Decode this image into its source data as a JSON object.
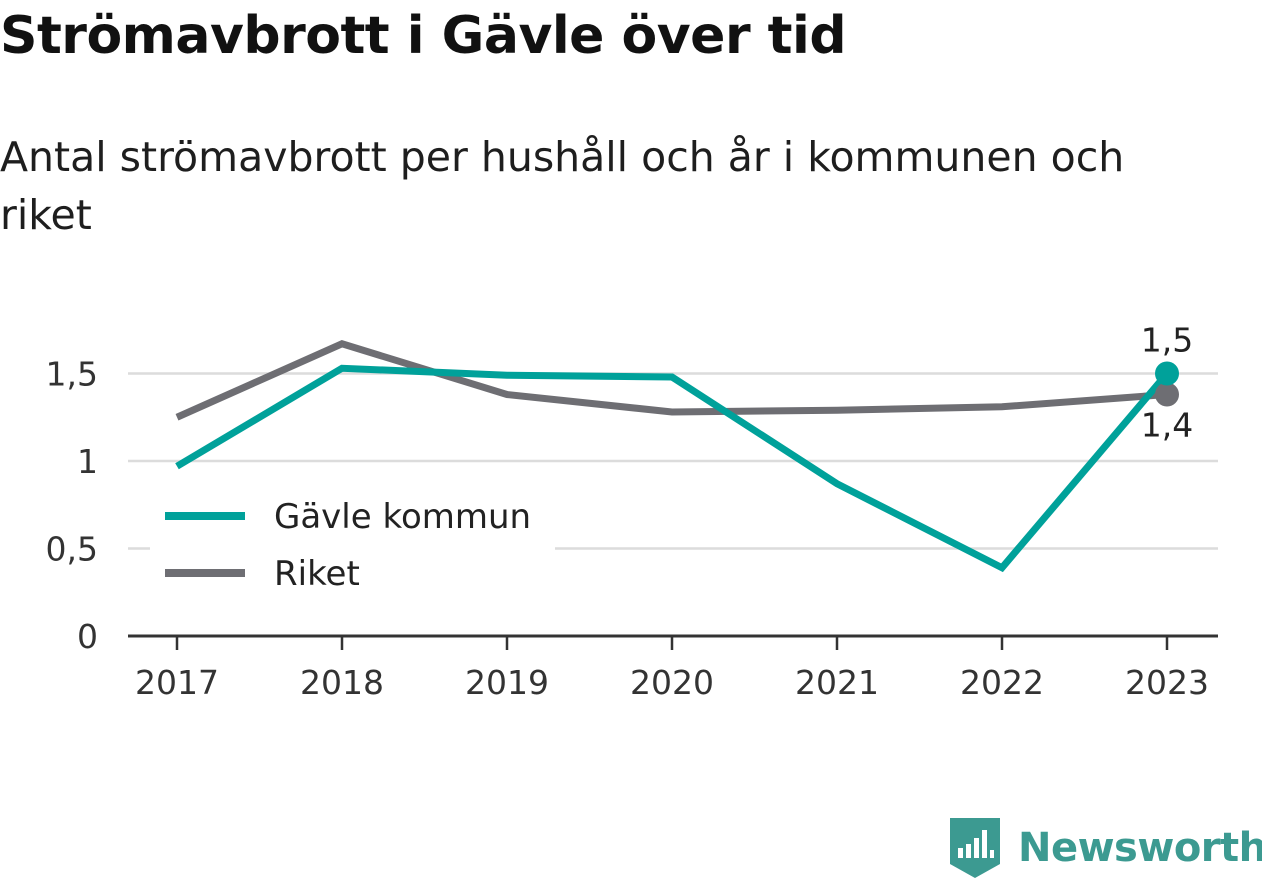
{
  "title": "Strömavbrott i Gävle över tid",
  "subtitle": "Antal strömavbrott per hushåll och år i kommunen och riket",
  "brand": {
    "name": "Newsworthy",
    "color": "#3c9a91"
  },
  "chart_data": {
    "type": "line",
    "x": [
      "2017",
      "2018",
      "2019",
      "2020",
      "2021",
      "2022",
      "2023"
    ],
    "ylim": [
      0,
      1.75
    ],
    "yticks": [
      {
        "value": 0,
        "label": "0"
      },
      {
        "value": 0.5,
        "label": "0,5"
      },
      {
        "value": 1,
        "label": "1"
      },
      {
        "value": 1.5,
        "label": "1,5"
      }
    ],
    "grid": true,
    "legend_position": "left",
    "series": [
      {
        "name": "Gävle kommun",
        "color": "#00a19a",
        "values": [
          0.97,
          1.53,
          1.49,
          1.48,
          0.87,
          0.39,
          1.5
        ],
        "end_label": "1,5"
      },
      {
        "name": "Riket",
        "color": "#6e6e73",
        "values": [
          1.25,
          1.67,
          1.38,
          1.28,
          1.29,
          1.31,
          1.38
        ],
        "end_label": "1,4"
      }
    ]
  }
}
